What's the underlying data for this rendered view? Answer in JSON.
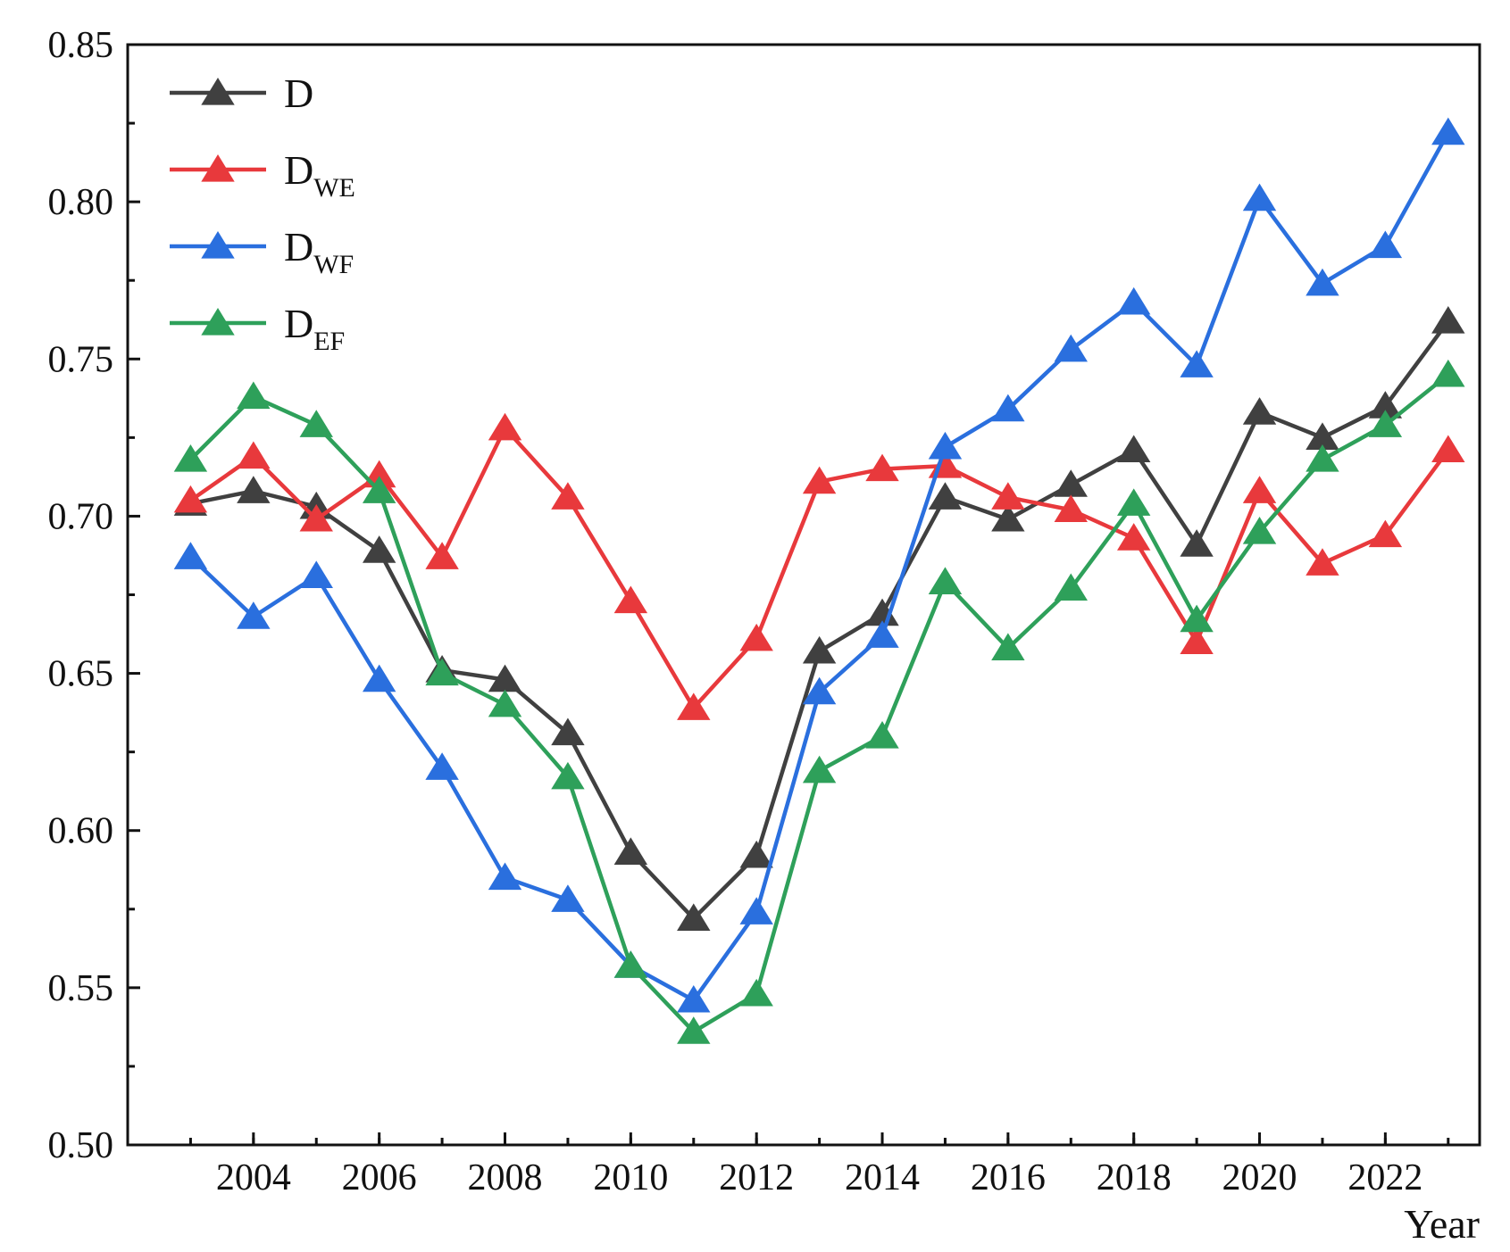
{
  "chart_data": {
    "type": "line",
    "title": "",
    "xlabel": "Year",
    "ylabel": "",
    "xlim": [
      2002.0,
      2023.5
    ],
    "ylim": [
      0.5,
      0.85
    ],
    "x": [
      2003,
      2004,
      2005,
      2006,
      2007,
      2008,
      2009,
      2010,
      2011,
      2012,
      2013,
      2014,
      2015,
      2016,
      2017,
      2018,
      2019,
      2020,
      2021,
      2022,
      2023
    ],
    "x_tick_labels": [
      "2004",
      "2006",
      "2008",
      "2010",
      "2012",
      "2014",
      "2016",
      "2018",
      "2020",
      "2022"
    ],
    "y_tick_labels": [
      "0.50",
      "0.55",
      "0.60",
      "0.65",
      "0.70",
      "0.75",
      "0.80",
      "0.85"
    ],
    "grid": false,
    "legend_position": "top-left",
    "marker": "triangle",
    "series": [
      {
        "name": "D",
        "label_main": "D",
        "label_sub": "",
        "color": "#404040",
        "values": [
          0.704,
          0.708,
          0.703,
          0.689,
          0.651,
          0.648,
          0.631,
          0.593,
          0.572,
          0.592,
          0.657,
          0.669,
          0.706,
          0.699,
          0.71,
          0.721,
          0.691,
          0.733,
          0.725,
          0.735,
          0.762
        ]
      },
      {
        "name": "DWE",
        "label_main": "D",
        "label_sub": "WE",
        "color": "#e8393c",
        "values": [
          0.705,
          0.719,
          0.699,
          0.713,
          0.687,
          0.728,
          0.706,
          0.673,
          0.639,
          0.661,
          0.711,
          0.715,
          0.716,
          0.706,
          0.702,
          0.693,
          0.66,
          0.708,
          0.685,
          0.694,
          0.721
        ]
      },
      {
        "name": "DWF",
        "label_main": "D",
        "label_sub": "WF",
        "color": "#2a6fde",
        "values": [
          0.687,
          0.668,
          0.681,
          0.648,
          0.62,
          0.585,
          0.578,
          0.557,
          0.546,
          0.574,
          0.644,
          0.662,
          0.722,
          0.734,
          0.753,
          0.768,
          0.748,
          0.801,
          0.774,
          0.786,
          0.822
        ]
      },
      {
        "name": "DEF",
        "label_main": "D",
        "label_sub": "EF",
        "color": "#2ea05a",
        "values": [
          0.718,
          0.738,
          0.729,
          0.708,
          0.65,
          0.64,
          0.617,
          0.557,
          0.536,
          0.548,
          0.619,
          0.63,
          0.679,
          0.658,
          0.677,
          0.704,
          0.667,
          0.695,
          0.718,
          0.729,
          0.745
        ]
      }
    ]
  }
}
